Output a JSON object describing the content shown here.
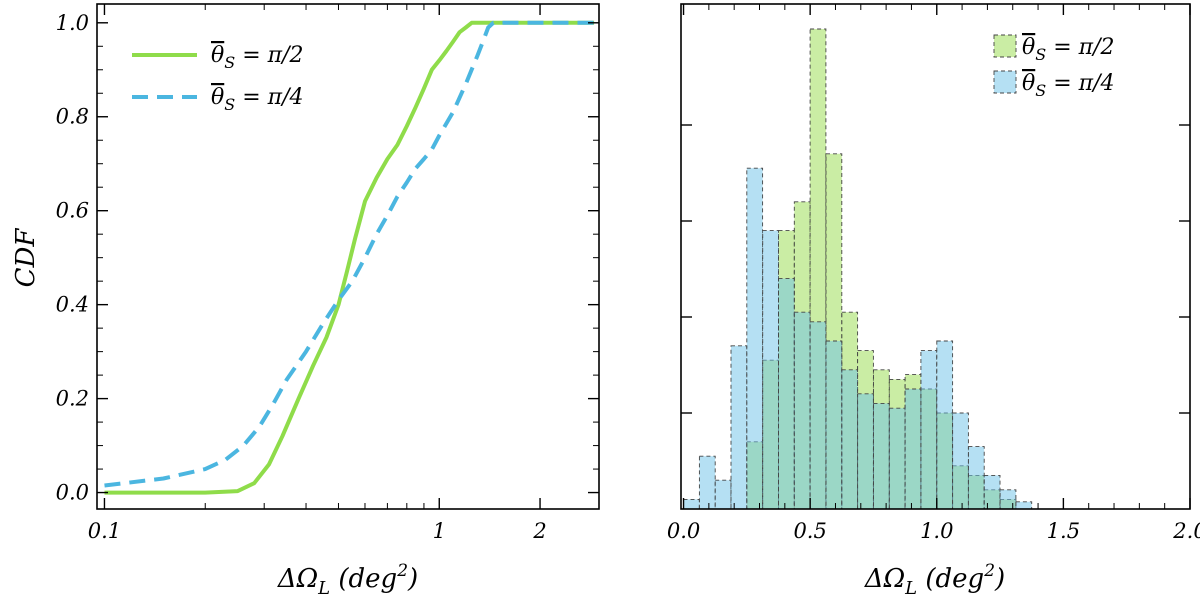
{
  "chart_data": [
    {
      "type": "line",
      "xscale": "log",
      "xlim": [
        0.095,
        3.0
      ],
      "ylim": [
        -0.035,
        1.04
      ],
      "xticks": [
        0.1,
        1,
        2
      ],
      "xtick_labels": [
        "0.1",
        "1",
        "2"
      ],
      "yticks": [
        0.0,
        0.2,
        0.4,
        0.6,
        0.8,
        1.0
      ],
      "ytick_labels": [
        "0.0",
        "0.2",
        "0.4",
        "0.6",
        "0.8",
        "1.0"
      ],
      "xlabel": "ΔΩL (deg²)",
      "xlabel_main": "ΔΩ",
      "xlabel_sub": "L",
      "xlabel_unit": "(deg",
      "xlabel_sup": "2",
      "xlabel_close": ")",
      "ylabel": "CDF",
      "legend_position": "top-left",
      "series": [
        {
          "name": "θ̄S = π/2",
          "legend_theta": "θ",
          "legend_sub": "S",
          "legend_rest": " = π/2",
          "color": "#8fdc4a",
          "style": "solid",
          "x": [
            0.1,
            0.2,
            0.25,
            0.28,
            0.31,
            0.34,
            0.38,
            0.42,
            0.46,
            0.5,
            0.53,
            0.56,
            0.6,
            0.65,
            0.7,
            0.75,
            0.8,
            0.85,
            0.9,
            0.95,
            1.0,
            1.05,
            1.1,
            1.15,
            1.2,
            1.25,
            1.3,
            1.4,
            1.5,
            2.0,
            2.9
          ],
          "y": [
            0.0,
            0.0,
            0.003,
            0.02,
            0.06,
            0.12,
            0.2,
            0.27,
            0.33,
            0.4,
            0.47,
            0.54,
            0.62,
            0.67,
            0.71,
            0.74,
            0.78,
            0.82,
            0.86,
            0.9,
            0.92,
            0.94,
            0.96,
            0.98,
            0.99,
            1.0,
            1.0,
            1.0,
            1.0,
            1.0,
            1.0
          ]
        },
        {
          "name": "θ̄S = π/4",
          "legend_theta": "θ",
          "legend_sub": "S",
          "legend_rest": " = π/4",
          "color": "#4bb6e0",
          "style": "dashed",
          "x": [
            0.1,
            0.15,
            0.2,
            0.23,
            0.26,
            0.29,
            0.32,
            0.35,
            0.4,
            0.45,
            0.5,
            0.55,
            0.6,
            0.65,
            0.7,
            0.75,
            0.8,
            0.85,
            0.9,
            0.95,
            1.0,
            1.1,
            1.2,
            1.3,
            1.35,
            1.4,
            1.45,
            1.5,
            2.0,
            2.9
          ],
          "y": [
            0.015,
            0.03,
            0.05,
            0.07,
            0.1,
            0.14,
            0.19,
            0.24,
            0.3,
            0.36,
            0.41,
            0.45,
            0.5,
            0.55,
            0.59,
            0.63,
            0.66,
            0.69,
            0.71,
            0.73,
            0.76,
            0.81,
            0.87,
            0.93,
            0.96,
            0.99,
            1.0,
            1.0,
            1.0,
            1.0
          ]
        }
      ]
    },
    {
      "type": "bar",
      "histogram": true,
      "bin_edges": [
        0.0,
        0.0625,
        0.125,
        0.1875,
        0.25,
        0.3125,
        0.375,
        0.4375,
        0.5,
        0.5625,
        0.625,
        0.6875,
        0.75,
        0.8125,
        0.875,
        0.9375,
        1.0,
        1.0625,
        1.125,
        1.1875,
        1.25,
        1.3125,
        1.375,
        1.4375,
        1.5
      ],
      "xlim": [
        -0.01,
        2.0
      ],
      "ylim": [
        0,
        1.0
      ],
      "xticks": [
        0.0,
        0.5,
        1.0,
        1.5,
        2.0
      ],
      "xtick_labels": [
        "0.0",
        "0.5",
        "1.0",
        "1.5",
        "2.0"
      ],
      "y_ticks_unlabeled": [
        0.2,
        0.4,
        0.6,
        0.8
      ],
      "xlabel": "ΔΩL (deg²)",
      "xlabel_main": "ΔΩ",
      "xlabel_sub": "L",
      "xlabel_unit": "(deg",
      "xlabel_sup": "2",
      "xlabel_close": ")",
      "legend_position": "top-right",
      "series": [
        {
          "name": "θ̄S = π/2",
          "legend_theta": "θ",
          "legend_sub": "S",
          "legend_rest": " = π/2",
          "color": "#9fdf5a",
          "alpha": 0.55,
          "values": [
            0,
            0,
            0,
            0,
            0.14,
            0.31,
            0.58,
            0.64,
            1.0,
            0.74,
            0.41,
            0.33,
            0.29,
            0.27,
            0.28,
            0.25,
            0.2,
            0.09,
            0.07,
            0.04,
            0.02,
            0,
            0,
            0
          ]
        },
        {
          "name": "θ̄S = π/4",
          "legend_theta": "θ",
          "legend_sub": "S",
          "legend_rest": " = π/4",
          "color": "#6cc2e8",
          "alpha": 0.5,
          "values": [
            0.02,
            0.11,
            0.06,
            0.34,
            0.71,
            0.58,
            0.48,
            0.41,
            0.39,
            0.35,
            0.29,
            0.24,
            0.22,
            0.21,
            0.25,
            0.33,
            0.35,
            0.2,
            0.13,
            0.07,
            0.04,
            0.015,
            0,
            0
          ]
        }
      ]
    }
  ]
}
